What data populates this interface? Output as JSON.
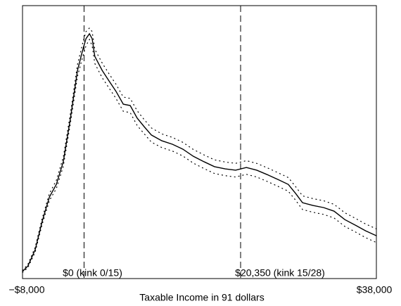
{
  "chart_data": {
    "type": "line",
    "x_label": "Taxable Income in 91 dollars",
    "x": [
      -8000,
      -7300,
      -6350,
      -5450,
      -4500,
      -3600,
      -2700,
      -1800,
      -850,
      -200,
      250,
      700,
      1050,
      1400,
      2350,
      3250,
      4150,
      5100,
      6000,
      6900,
      7800,
      8750,
      10100,
      11500,
      12850,
      14200,
      15600,
      16950,
      18350,
      19700,
      21100,
      22450,
      23800,
      25200,
      26550,
      27500,
      28400,
      29750,
      31150,
      32500,
      33900,
      35250,
      36600,
      38000
    ],
    "series": [
      {
        "color": "#000000",
        "style": "solid",
        "values": [
          2.6,
          4.6,
          10.6,
          20.9,
          29.9,
          34.5,
          42.8,
          58.2,
          76.3,
          83.5,
          87.9,
          89.7,
          87.9,
          81.4,
          76.3,
          72.4,
          68.6,
          63.9,
          63.4,
          58.8,
          55.7,
          52.6,
          50.5,
          49.2,
          47.4,
          44.8,
          42.8,
          41.0,
          40.2,
          39.7,
          40.7,
          39.7,
          38.1,
          36.3,
          34.5,
          31.2,
          27.8,
          26.8,
          26.0,
          24.7,
          21.6,
          19.6,
          17.5,
          15.7
        ]
      },
      {
        "color": "#000000",
        "style": "dotted",
        "values": [
          3.0,
          5.2,
          11.5,
          22.0,
          31.2,
          36.0,
          44.5,
          60.0,
          78.5,
          86.0,
          90.5,
          91.8,
          90.5,
          84.0,
          79.0,
          75.0,
          71.2,
          66.5,
          66.0,
          61.5,
          58.3,
          55.2,
          53.0,
          51.7,
          49.9,
          47.3,
          45.3,
          43.5,
          42.7,
          42.2,
          43.2,
          42.2,
          40.6,
          38.8,
          37.0,
          33.7,
          30.3,
          29.3,
          28.5,
          27.2,
          24.1,
          22.1,
          20.0,
          18.2
        ]
      },
      {
        "color": "#000000",
        "style": "dotted",
        "values": [
          2.2,
          4.0,
          9.7,
          19.8,
          28.6,
          33.0,
          41.1,
          56.4,
          74.1,
          81.0,
          85.3,
          87.6,
          85.3,
          78.8,
          73.6,
          69.8,
          66.0,
          61.3,
          60.8,
          56.1,
          53.1,
          50.0,
          48.0,
          46.7,
          44.9,
          42.3,
          40.3,
          38.5,
          37.7,
          37.2,
          38.2,
          37.2,
          35.6,
          33.8,
          32.0,
          28.7,
          25.3,
          24.3,
          23.5,
          22.2,
          19.1,
          17.1,
          15.0,
          13.2
        ]
      }
    ],
    "xlim": [
      -8000,
      38000
    ],
    "ylim": [
      0,
      100
    ],
    "xticks": [
      {
        "value": -8000,
        "label": "−$8,000"
      },
      {
        "value": 38000,
        "label": "$38,000"
      }
    ],
    "vlines": [
      {
        "x": 0,
        "label": "$0 (kink 0/15)"
      },
      {
        "x": 20350,
        "label": "$20,350 (kink 15/28)"
      }
    ]
  }
}
